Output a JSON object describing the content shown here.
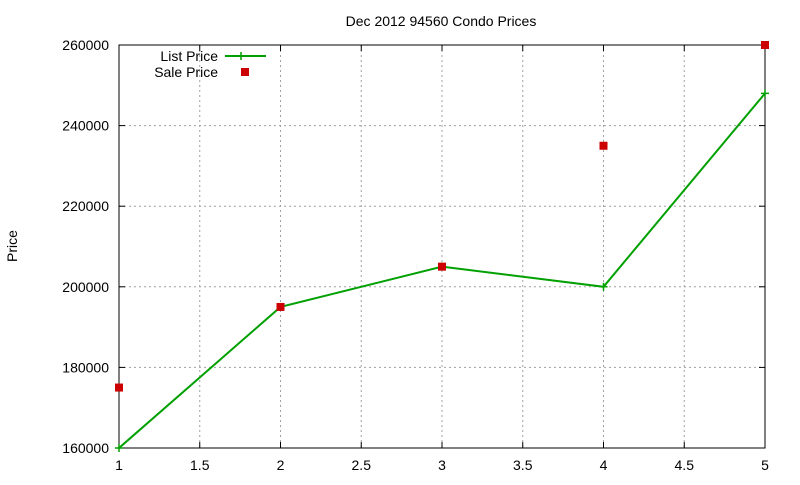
{
  "chart_data": {
    "type": "line",
    "title": "Dec 2012 94560 Condo Prices",
    "xlabel": "",
    "ylabel": "Price",
    "xlim": [
      1,
      5
    ],
    "ylim": [
      160000,
      260000
    ],
    "xticks": [
      1,
      1.5,
      2,
      2.5,
      3,
      3.5,
      4,
      4.5,
      5
    ],
    "yticks": [
      160000,
      180000,
      200000,
      220000,
      240000,
      260000
    ],
    "grid": true,
    "legend_position": "top-left",
    "series": [
      {
        "name": "List Price",
        "style": "linespoints",
        "marker": "plus",
        "color": "#00a000",
        "x": [
          1,
          2,
          3,
          4,
          5
        ],
        "y": [
          160000,
          195000,
          205000,
          200000,
          248000
        ]
      },
      {
        "name": "Sale Price",
        "style": "points",
        "marker": "square",
        "color": "#cc0000",
        "x": [
          1,
          2,
          3,
          4,
          5
        ],
        "y": [
          175000,
          195000,
          205000,
          235000,
          260000
        ]
      }
    ]
  }
}
